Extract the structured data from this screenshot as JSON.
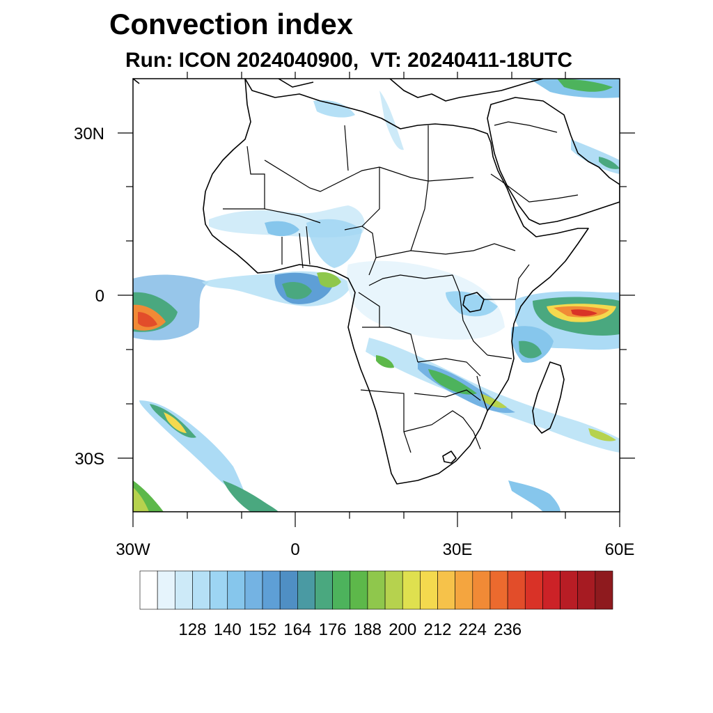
{
  "header": {
    "title": "Convection index",
    "subtitle": "Run: ICON 2024040900,  VT: 20240411-18UTC"
  },
  "map": {
    "lat_labels": [
      "30N",
      "0",
      "30S"
    ],
    "lon_labels": [
      "30W",
      "0",
      "30E",
      "60E"
    ],
    "projection": "cylindrical equidistant",
    "extent": {
      "lon": [
        -30,
        60
      ],
      "lat": [
        -40,
        40
      ]
    },
    "land_fill": "#ffffff",
    "boundary_color": "#000000"
  },
  "colorbar": {
    "tick_labels": [
      "128",
      "140",
      "152",
      "164",
      "176",
      "188",
      "200",
      "212",
      "224",
      "236"
    ],
    "colors": [
      "#ffffff",
      "#e6f4fc",
      "#cdeaf8",
      "#b5e0f6",
      "#9dd5f3",
      "#86c6ec",
      "#74b3e3",
      "#5e9fd6",
      "#4f8fc4",
      "#4a9aa3",
      "#4aa87f",
      "#4db35c",
      "#5db84a",
      "#8fc74c",
      "#b6d24e",
      "#dfe04f",
      "#f4d94e",
      "#f6c24a",
      "#f4a53f",
      "#f18a36",
      "#ec6a2e",
      "#e24d2a",
      "#d93227",
      "#cc2227",
      "#b81d25",
      "#a61b22",
      "#8e1a1e"
    ]
  }
}
